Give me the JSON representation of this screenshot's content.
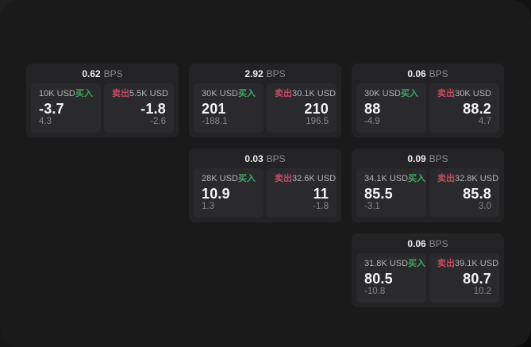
{
  "labels": {
    "bps_unit": "BPS",
    "buy": "买入",
    "sell": "卖出"
  },
  "colors": {
    "buy_green": "#3ea565",
    "sell_red": "#c14a63",
    "page_bg": "#1a1a1b",
    "card_bg": "#232325",
    "panel_bg": "#2a2a2d"
  },
  "cards": [
    {
      "bps": "0.62",
      "buy": {
        "amount": "10K USD",
        "value": "-3.7",
        "delta": "4.3"
      },
      "sell": {
        "amount": "5.5K USD",
        "value": "-1.8",
        "delta": "-2.6"
      }
    },
    {
      "bps": "2.92",
      "buy": {
        "amount": "30K USD",
        "value": "201",
        "delta": "-188.1"
      },
      "sell": {
        "amount": "30.1K USD",
        "value": "210",
        "delta": "196.5"
      }
    },
    {
      "bps": "0.06",
      "buy": {
        "amount": "30K USD",
        "value": "88",
        "delta": "-4.9"
      },
      "sell": {
        "amount": "30K USD",
        "value": "88.2",
        "delta": "4.7"
      }
    },
    {
      "bps": "0.03",
      "buy": {
        "amount": "28K USD",
        "value": "10.9",
        "delta": "1.3"
      },
      "sell": {
        "amount": "32.6K USD",
        "value": "11",
        "delta": "-1.8"
      }
    },
    {
      "bps": "0.09",
      "buy": {
        "amount": "34.1K USD",
        "value": "85.5",
        "delta": "-3.1"
      },
      "sell": {
        "amount": "32.8K USD",
        "value": "85.8",
        "delta": "3.0"
      }
    },
    {
      "bps": "0.06",
      "buy": {
        "amount": "31.8K USD",
        "value": "80.5",
        "delta": "-10.8"
      },
      "sell": {
        "amount": "39.1K USD",
        "value": "80.7",
        "delta": "10.2"
      }
    }
  ]
}
